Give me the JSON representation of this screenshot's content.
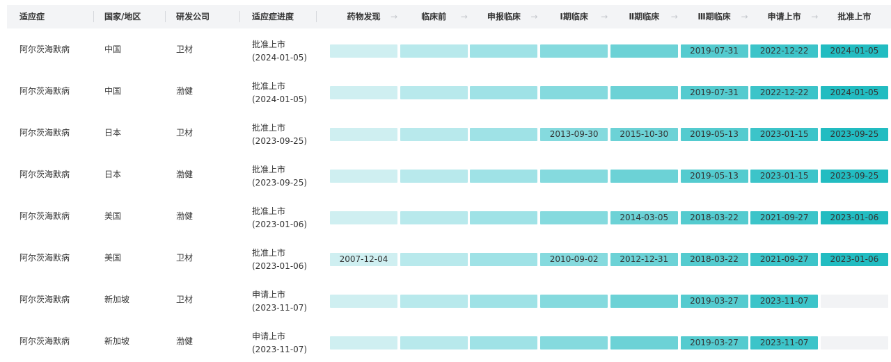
{
  "columns": {
    "indication": "适应症",
    "country": "国家/地区",
    "company": "研发公司",
    "progress": "适应症进度"
  },
  "stages": [
    "药物发现",
    "临床前",
    "申报临床",
    "Ⅰ期临床",
    "Ⅱ期临床",
    "Ⅲ期临床",
    "申请上市",
    "批准上市"
  ],
  "rows": [
    {
      "indication": "阿尔茨海默病",
      "country": "中国",
      "company": "卫材",
      "status": "批准上市",
      "status_date": "(2024-01-05)",
      "stages": [
        "",
        "",
        "",
        "",
        "",
        "2019-07-31",
        "2022-12-22",
        "2024-01-05"
      ],
      "reached": 8
    },
    {
      "indication": "阿尔茨海默病",
      "country": "中国",
      "company": "渤健",
      "status": "批准上市",
      "status_date": "(2024-01-05)",
      "stages": [
        "",
        "",
        "",
        "",
        "",
        "2019-07-31",
        "2022-12-22",
        "2024-01-05"
      ],
      "reached": 8
    },
    {
      "indication": "阿尔茨海默病",
      "country": "日本",
      "company": "卫材",
      "status": "批准上市",
      "status_date": "(2023-09-25)",
      "stages": [
        "",
        "",
        "",
        "2013-09-30",
        "2015-10-30",
        "2019-05-13",
        "2023-01-15",
        "2023-09-25"
      ],
      "reached": 8
    },
    {
      "indication": "阿尔茨海默病",
      "country": "日本",
      "company": "渤健",
      "status": "批准上市",
      "status_date": "(2023-09-25)",
      "stages": [
        "",
        "",
        "",
        "",
        "",
        "2019-05-13",
        "2023-01-15",
        "2023-09-25"
      ],
      "reached": 8
    },
    {
      "indication": "阿尔茨海默病",
      "country": "美国",
      "company": "渤健",
      "status": "批准上市",
      "status_date": "(2023-01-06)",
      "stages": [
        "",
        "",
        "",
        "",
        "2014-03-05",
        "2018-03-22",
        "2021-09-27",
        "2023-01-06"
      ],
      "reached": 8
    },
    {
      "indication": "阿尔茨海默病",
      "country": "美国",
      "company": "卫材",
      "status": "批准上市",
      "status_date": "(2023-01-06)",
      "stages": [
        "2007-12-04",
        "",
        "",
        "2010-09-02",
        "2012-12-31",
        "2018-03-22",
        "2021-09-27",
        "2023-01-06"
      ],
      "reached": 8
    },
    {
      "indication": "阿尔茨海默病",
      "country": "新加坡",
      "company": "卫材",
      "status": "申请上市",
      "status_date": "(2023-11-07)",
      "stages": [
        "",
        "",
        "",
        "",
        "",
        "2019-03-27",
        "2023-11-07",
        ""
      ],
      "reached": 7
    },
    {
      "indication": "阿尔茨海默病",
      "country": "新加坡",
      "company": "渤健",
      "status": "申请上市",
      "status_date": "(2023-11-07)",
      "stages": [
        "",
        "",
        "",
        "",
        "",
        "2019-03-27",
        "2023-11-07",
        ""
      ],
      "reached": 7
    }
  ],
  "colors": {
    "stage_fill": [
      "#cfeff1",
      "#b8e9ec",
      "#9fe2e6",
      "#85dade",
      "#6cd2d6",
      "#54cbcf",
      "#3cc4c9",
      "#22bcc1"
    ],
    "unreached_fill": "#f2f3f5",
    "header_bg": "#f3f4f6"
  },
  "icons": {
    "stage_arrow": "arrow-right-icon"
  }
}
